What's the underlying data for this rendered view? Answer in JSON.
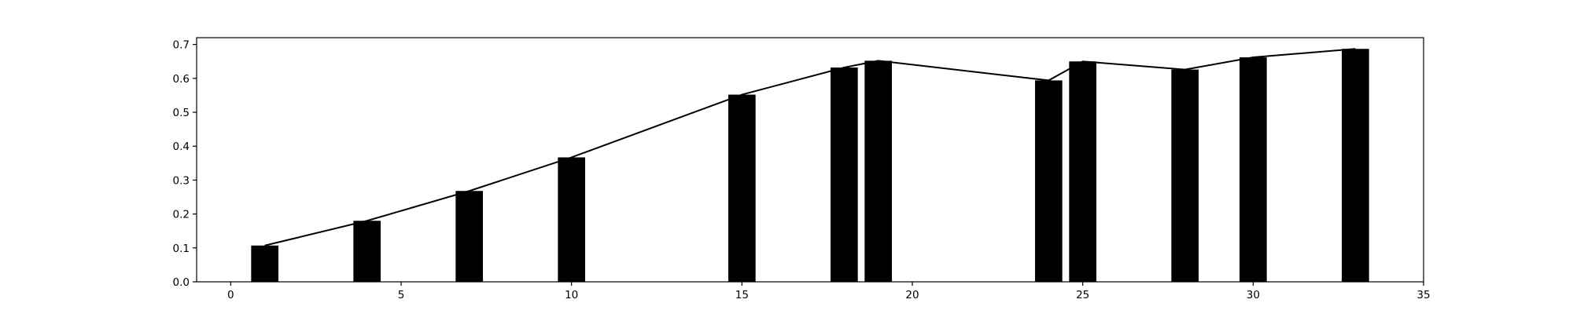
{
  "chart_data": {
    "type": "bar",
    "title": "",
    "xlabel": "",
    "ylabel": "",
    "xlim": [
      -1,
      35
    ],
    "ylim": [
      0,
      0.72
    ],
    "xticks": [
      0,
      5,
      10,
      15,
      20,
      25,
      30,
      35
    ],
    "yticks": [
      0.0,
      0.1,
      0.2,
      0.3,
      0.4,
      0.5,
      0.6,
      0.7
    ],
    "xtick_labels": [
      "0",
      "5",
      "10",
      "15",
      "20",
      "25",
      "30",
      "35"
    ],
    "ytick_labels": [
      "0.0",
      "0.1",
      "0.2",
      "0.3",
      "0.4",
      "0.5",
      "0.6",
      "0.7"
    ],
    "grid": false,
    "legend": "none",
    "bar_color": "#000000",
    "line_color": "#000000",
    "bar_width": 0.8,
    "x": [
      1,
      4,
      7,
      10,
      15,
      18,
      19,
      24,
      25,
      28,
      30,
      33
    ],
    "values": [
      0.107,
      0.18,
      0.268,
      0.367,
      0.552,
      0.632,
      0.652,
      0.594,
      0.65,
      0.626,
      0.662,
      0.687
    ],
    "line_overlay": true
  }
}
